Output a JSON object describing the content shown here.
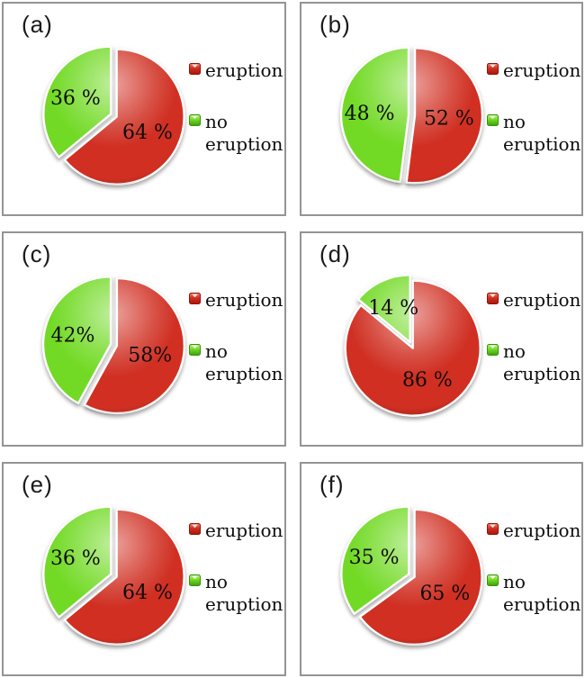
{
  "colors": {
    "eruption": "#d02f22",
    "no_eruption": "#72da25",
    "eruption_dark": "#a81608",
    "no_eruption_dark": "#3f9e0d",
    "panel_border": "#949494",
    "slice_gap": "#ffffff",
    "label_text": "#0d0d0d"
  },
  "legend": {
    "items": [
      {
        "name": "eruption",
        "color": "#d02f22"
      },
      {
        "name": "no eruption",
        "color": "#72da25"
      }
    ]
  },
  "panels": [
    {
      "label": "(a)",
      "eruption_pct": 64,
      "no_eruption_pct": 36,
      "eruption_label_text": "64 %",
      "no_eruption_label_text": "36 %"
    },
    {
      "label": "(b)",
      "eruption_pct": 52,
      "no_eruption_pct": 48,
      "eruption_label_text": "52 %",
      "no_eruption_label_text": "48 %"
    },
    {
      "label": "(c)",
      "eruption_pct": 58,
      "no_eruption_pct": 42,
      "eruption_label_text": "58%",
      "no_eruption_label_text": "42%"
    },
    {
      "label": "(d)",
      "eruption_pct": 86,
      "no_eruption_pct": 14,
      "eruption_label_text": "86 %",
      "no_eruption_label_text": "14 %"
    },
    {
      "label": "(e)",
      "eruption_pct": 64,
      "no_eruption_pct": 36,
      "eruption_label_text": "64 %",
      "no_eruption_label_text": "36 %"
    },
    {
      "label": "(f)",
      "eruption_pct": 65,
      "no_eruption_pct": 35,
      "eruption_label_text": "65 %",
      "no_eruption_label_text": "35 %"
    }
  ],
  "chart_data": [
    {
      "type": "pie",
      "panel": "(a)",
      "categories": [
        "eruption",
        "no eruption"
      ],
      "values": [
        64,
        36
      ],
      "slice_labels": [
        "64 %",
        "36 %"
      ],
      "colors": [
        "#d02f22",
        "#72da25"
      ],
      "legend_position": "right",
      "start_angle_deg": 0,
      "exploded": true
    },
    {
      "type": "pie",
      "panel": "(b)",
      "categories": [
        "eruption",
        "no eruption"
      ],
      "values": [
        52,
        48
      ],
      "slice_labels": [
        "52 %",
        "48 %"
      ],
      "colors": [
        "#d02f22",
        "#72da25"
      ],
      "legend_position": "right",
      "start_angle_deg": 0,
      "exploded": true
    },
    {
      "type": "pie",
      "panel": "(c)",
      "categories": [
        "eruption",
        "no eruption"
      ],
      "values": [
        58,
        42
      ],
      "slice_labels": [
        "58%",
        "42%"
      ],
      "colors": [
        "#d02f22",
        "#72da25"
      ],
      "legend_position": "right",
      "start_angle_deg": 0,
      "exploded": true
    },
    {
      "type": "pie",
      "panel": "(d)",
      "categories": [
        "eruption",
        "no eruption"
      ],
      "values": [
        86,
        14
      ],
      "slice_labels": [
        "86 %",
        "14 %"
      ],
      "colors": [
        "#d02f22",
        "#72da25"
      ],
      "legend_position": "right",
      "start_angle_deg": 0,
      "exploded": true
    },
    {
      "type": "pie",
      "panel": "(e)",
      "categories": [
        "eruption",
        "no eruption"
      ],
      "values": [
        64,
        36
      ],
      "slice_labels": [
        "64 %",
        "36 %"
      ],
      "colors": [
        "#d02f22",
        "#72da25"
      ],
      "legend_position": "right",
      "start_angle_deg": 0,
      "exploded": true
    },
    {
      "type": "pie",
      "panel": "(f)",
      "categories": [
        "eruption",
        "no eruption"
      ],
      "values": [
        65,
        35
      ],
      "slice_labels": [
        "65 %",
        "35 %"
      ],
      "colors": [
        "#d02f22",
        "#72da25"
      ],
      "legend_position": "right",
      "start_angle_deg": 0,
      "exploded": true
    }
  ]
}
